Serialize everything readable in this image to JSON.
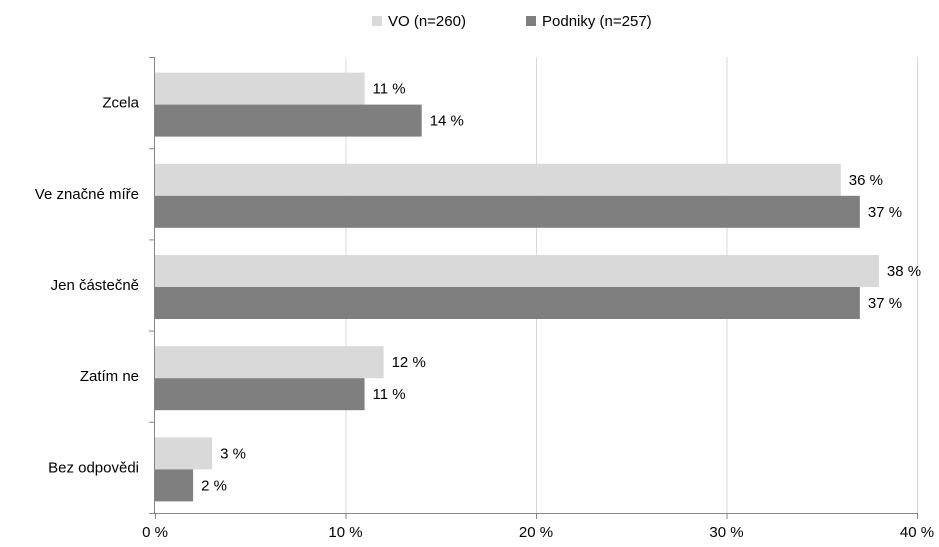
{
  "chart_data": {
    "type": "bar",
    "orientation": "horizontal",
    "categories": [
      "Zcela",
      "Ve značné míře",
      "Jen částečně",
      "Zatím ne",
      "Bez odpovědi"
    ],
    "series": [
      {
        "name": "VO (n=260)",
        "values": [
          11,
          36,
          38,
          12,
          3
        ],
        "labels": [
          "11 %",
          "36 %",
          "38 %",
          "12 %",
          "3 %"
        ],
        "color": "#d9d9d9"
      },
      {
        "name": "Podniky (n=257)",
        "values": [
          14,
          37,
          37,
          11,
          2
        ],
        "labels": [
          "14 %",
          "37 %",
          "37 %",
          "11 %",
          "2 %"
        ],
        "color": "#7f7f7f"
      }
    ],
    "xlim": [
      0,
      40
    ],
    "xticks": [
      0,
      10,
      20,
      30,
      40
    ],
    "xtick_labels": [
      "0 %",
      "10 %",
      "20 %",
      "30 %",
      "40 %"
    ],
    "grid": true,
    "legend_position": "top"
  }
}
